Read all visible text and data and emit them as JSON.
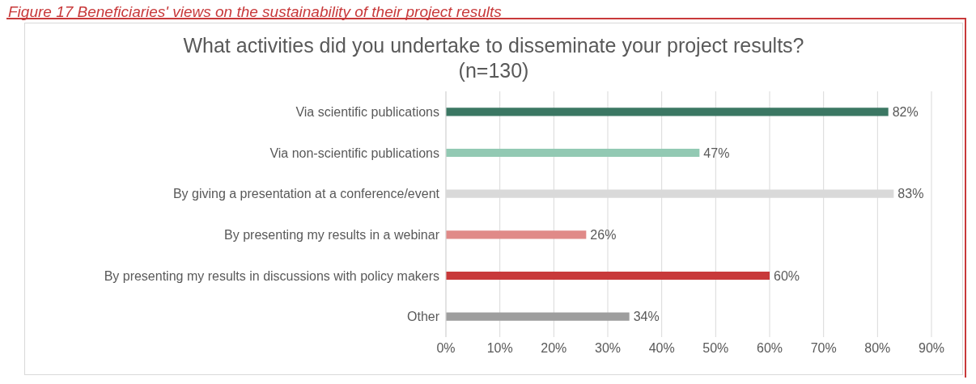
{
  "chart_data": {
    "type": "bar",
    "orientation": "horizontal",
    "title": "What activities did you undertake to disseminate your project results?  (n=130)",
    "annotations": [
      "Figure 17 Beneficiaries' views on the sustainability of their project results"
    ],
    "categories": [
      "Via scientific publications",
      "Via non-scientific publications",
      "By giving a presentation at a conference/event",
      "By presenting my results in a webinar",
      "By presenting my results in discussions with policy makers",
      "Other"
    ],
    "values": [
      82,
      47,
      83,
      26,
      60,
      34
    ],
    "colors": [
      "#3b7763",
      "#92c9b3",
      "#d9d9d9",
      "#e08a88",
      "#c8393a",
      "#9e9e9e"
    ],
    "value_labels": [
      "82%",
      "47%",
      "83%",
      "26%",
      "60%",
      "34%"
    ],
    "xlim": [
      0,
      90
    ],
    "xticks": [
      {
        "value": 0,
        "label": "0%"
      },
      {
        "value": 10,
        "label": "10%"
      },
      {
        "value": 20,
        "label": "20%"
      },
      {
        "value": 30,
        "label": "30%"
      },
      {
        "value": 40,
        "label": "40%"
      },
      {
        "value": 50,
        "label": "50%"
      },
      {
        "value": 60,
        "label": "60%"
      },
      {
        "value": 70,
        "label": "70%"
      },
      {
        "value": 80,
        "label": "80%"
      },
      {
        "value": 90,
        "label": "90%"
      }
    ],
    "grid": "x",
    "legend": false
  }
}
